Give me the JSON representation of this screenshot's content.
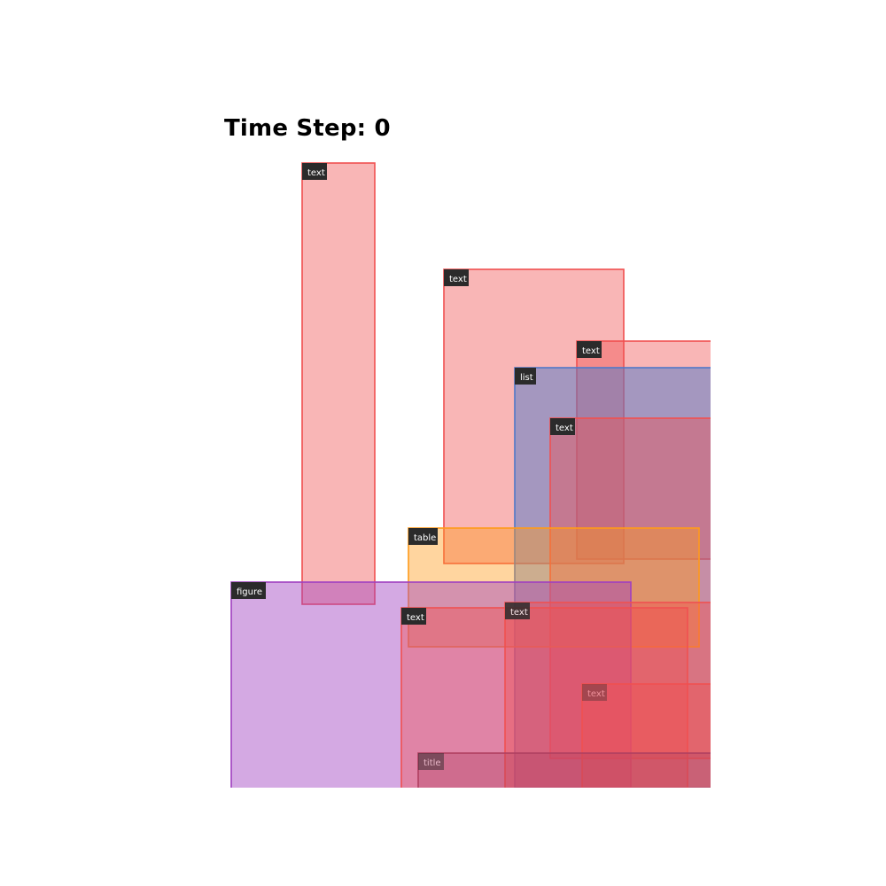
{
  "title": "Time Step: 0",
  "colors": {
    "text": "#f05050",
    "list": "#5078c8",
    "table": "#ff9a1a",
    "figure": "#a040c0",
    "title": "#b04060",
    "tag_background": "#2b2b2b",
    "tag_text": "#ffffff"
  },
  "regions": [
    {
      "id": "region-text-1",
      "label": "text",
      "kind": "text",
      "tag_alpha": 1.0
    },
    {
      "id": "region-text-2",
      "label": "text",
      "kind": "text",
      "tag_alpha": 1.0
    },
    {
      "id": "region-text-3",
      "label": "text",
      "kind": "text",
      "tag_alpha": 1.0
    },
    {
      "id": "region-list-1",
      "label": "list",
      "kind": "list",
      "tag_alpha": 1.0
    },
    {
      "id": "region-text-4",
      "label": "text",
      "kind": "text",
      "tag_alpha": 1.0
    },
    {
      "id": "region-table-1",
      "label": "table",
      "kind": "table",
      "tag_alpha": 1.0
    },
    {
      "id": "region-figure-1",
      "label": "figure",
      "kind": "figure",
      "tag_alpha": 1.0
    },
    {
      "id": "region-text-5",
      "label": "text",
      "kind": "text",
      "tag_alpha": 1.0
    },
    {
      "id": "region-text-6",
      "label": "text",
      "kind": "text",
      "tag_alpha": 0.85
    },
    {
      "id": "region-text-7",
      "label": "text",
      "kind": "text",
      "tag_alpha": 0.35
    },
    {
      "id": "region-title-1",
      "label": "title",
      "kind": "title",
      "tag_alpha": 0.5
    }
  ]
}
